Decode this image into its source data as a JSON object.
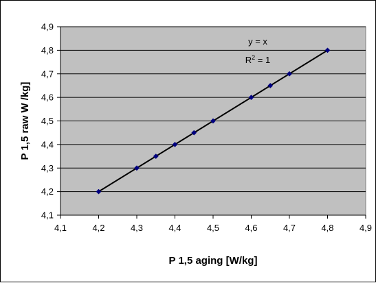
{
  "chart_data": {
    "type": "scatter",
    "title": "",
    "xlabel": "P 1,5 aging [W/kg]",
    "ylabel": "P 1,5 raw W /kg]",
    "xlim": [
      4.1,
      4.9
    ],
    "ylim": [
      4.1,
      4.9
    ],
    "x_ticks": [
      "4,1",
      "4,2",
      "4,3",
      "4,4",
      "4,5",
      "4,6",
      "4,7",
      "4,8",
      "4,9"
    ],
    "y_ticks": [
      "4,1",
      "4,2",
      "4,3",
      "4,4",
      "4,5",
      "4,6",
      "4,7",
      "4,8",
      "4,9"
    ],
    "grid": "horizontal",
    "legend": "none",
    "series": [
      {
        "x": [
          4.2,
          4.3,
          4.35,
          4.4,
          4.45,
          4.5,
          4.6,
          4.65,
          4.7,
          4.8
        ],
        "y": [
          4.2,
          4.3,
          4.35,
          4.4,
          4.45,
          4.5,
          4.6,
          4.65,
          4.7,
          4.8
        ],
        "marker": "diamond",
        "color": "#00007f"
      }
    ],
    "trendline": {
      "type": "linear",
      "slope": 1,
      "intercept": 0,
      "from": 4.2,
      "to": 4.8,
      "color": "#000000"
    },
    "annotations": {
      "equation": "y = x",
      "r2_prefix": "R",
      "r2_exp": "2",
      "r2_suffix": " = 1"
    },
    "colors": {
      "plot_bg": "#c0c0c0",
      "grid": "#000000"
    }
  }
}
